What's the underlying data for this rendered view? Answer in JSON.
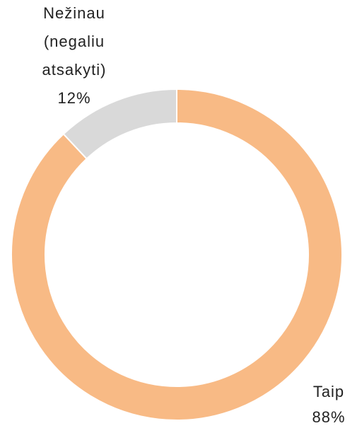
{
  "chart_data": {
    "type": "donut",
    "categories": [
      "Taip",
      "Nežinau (negaliu atsakyti)"
    ],
    "values": [
      88,
      12
    ],
    "value_labels": [
      "88%",
      "12%"
    ],
    "colors": [
      "#F8BA85",
      "#D9D9D9"
    ]
  }
}
